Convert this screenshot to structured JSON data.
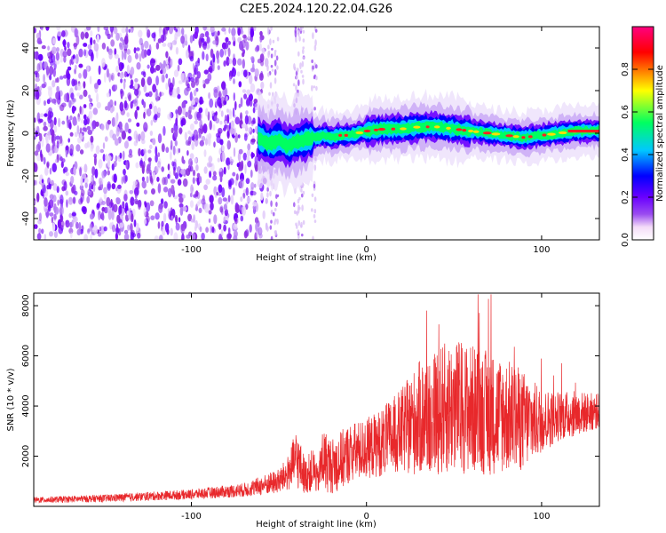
{
  "title": "C2E5.2024.120.22.04.G26",
  "chart_data": [
    {
      "type": "heatmap",
      "xlabel": "Height of straight line (km)",
      "ylabel": "Frequency (Hz)",
      "xlim": [
        -190,
        133
      ],
      "ylim": [
        -50,
        50
      ],
      "xticks": [
        -100,
        0,
        100
      ],
      "yticks": [
        -40,
        -20,
        0,
        20,
        40
      ],
      "noise_region_x": [
        -190,
        -60
      ],
      "sparse_noise_columns_x": [
        -55,
        -52,
        -40,
        -37,
        -30
      ],
      "signal_track": {
        "x": [
          -62,
          -58,
          -55,
          -50,
          -45,
          -40,
          -35,
          -30,
          -25,
          -20,
          -15,
          -10,
          -5,
          0,
          10,
          20,
          30,
          40,
          50,
          60,
          70,
          80,
          90,
          100,
          110,
          120,
          133
        ],
        "y": [
          -2,
          -4,
          -5,
          -3,
          -6,
          -4,
          -3,
          -2,
          -1,
          -2,
          -1,
          -1,
          0,
          1,
          2,
          2,
          3,
          3,
          2,
          1,
          0,
          -1,
          -2,
          -1,
          0,
          1,
          1
        ]
      },
      "colorbar": {
        "label": "Normalized spectral amplitude",
        "range": [
          0,
          1
        ],
        "ticks": [
          0.0,
          0.2,
          0.4,
          0.6,
          0.8
        ],
        "colors": [
          "#ffffff",
          "#f4dcf8",
          "#9b4df0",
          "#6a00ff",
          "#0000ff",
          "#00c8ff",
          "#00ff60",
          "#ffff00",
          "#ff0000",
          "#ff0080"
        ]
      }
    },
    {
      "type": "line",
      "xlabel": "Height of straight line (km)",
      "ylabel": "SNR (10 * v/v)",
      "xlim": [
        -190,
        133
      ],
      "ylim": [
        0,
        8500
      ],
      "xticks": [
        -100,
        0,
        100
      ],
      "yticks": [
        2000,
        4000,
        6000,
        8000
      ],
      "series_color": "#e8282b",
      "envelope": {
        "x": [
          -190,
          -150,
          -100,
          -70,
          -50,
          -45,
          -40,
          -35,
          -30,
          -28,
          -25,
          -20,
          -15,
          -10,
          0,
          10,
          20,
          30,
          40,
          50,
          60,
          70,
          80,
          90,
          100,
          110,
          120,
          133
        ],
        "mean": [
          250,
          320,
          480,
          650,
          1000,
          1300,
          1900,
          1200,
          1500,
          1000,
          1900,
          1600,
          1800,
          2100,
          2300,
          2600,
          3000,
          3500,
          3800,
          4000,
          3900,
          3700,
          3600,
          3400,
          3400,
          3600,
          3700,
          3800
        ],
        "amp": [
          120,
          150,
          200,
          280,
          500,
          700,
          1200,
          700,
          900,
          500,
          1300,
          1100,
          1200,
          1200,
          1200,
          1400,
          1700,
          2300,
          2600,
          2700,
          2600,
          2500,
          2300,
          2000,
          1300,
          1000,
          900,
          700
        ]
      }
    }
  ]
}
